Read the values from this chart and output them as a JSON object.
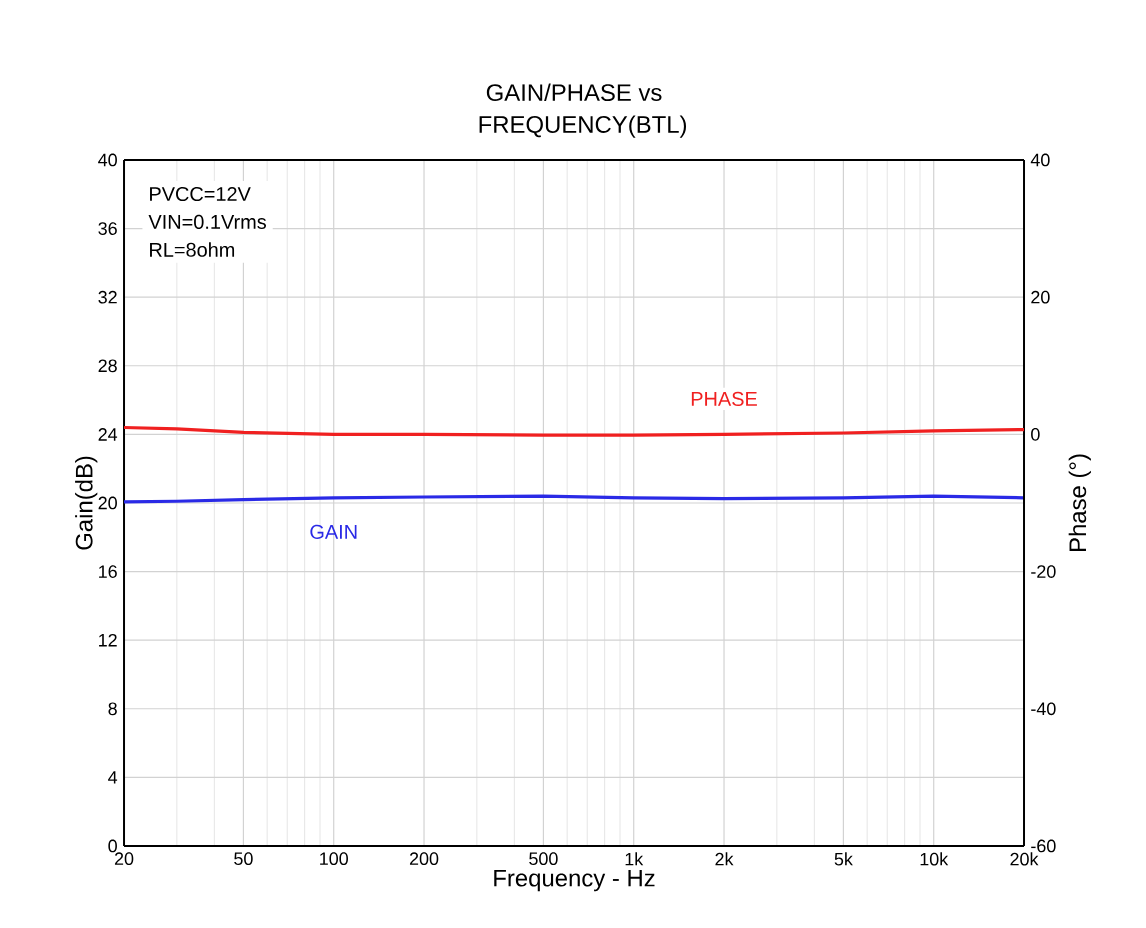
{
  "chart_data": {
    "type": "line",
    "title": "GAIN/PHASE vs FREQUENCY(BTL)",
    "xlabel": "Frequency - Hz",
    "ylabel": "Gain(dB)",
    "y2label": "Phase (°)",
    "log": "x",
    "grid": true,
    "legend": false,
    "marker": "none",
    "line_style": "solid",
    "xlim": [
      20,
      20000
    ],
    "xticks": [
      20,
      50,
      100,
      200,
      500,
      {
        "value": 1000,
        "label": "1k"
      },
      {
        "value": 2000,
        "label": "2k"
      },
      {
        "value": 5000,
        "label": "5k"
      },
      {
        "value": 10000,
        "label": "10k"
      },
      {
        "value": 20000,
        "label": "20k"
      }
    ],
    "ylim": [
      0,
      40
    ],
    "yticks": [
      0,
      4,
      8,
      12,
      16,
      20,
      24,
      28,
      32,
      36,
      40
    ],
    "y2lim": [
      -60,
      40
    ],
    "y2ticks": [
      -60,
      -40,
      -20,
      0,
      20,
      40
    ],
    "x": [
      20,
      30,
      50,
      100,
      200,
      500,
      1000,
      2000,
      5000,
      10000,
      20000
    ],
    "series": [
      {
        "name": "GAIN",
        "color": "#2a2ae6",
        "values": [
          20.06,
          20.1,
          20.2,
          20.3,
          20.35,
          20.4,
          20.3,
          20.25,
          20.3,
          20.4,
          20.3
        ]
      },
      {
        "name": "PHASE",
        "color": "#f02020",
        "axis": "y2",
        "values": [
          1,
          0.8,
          0.3,
          0,
          0,
          -0.1,
          -0.1,
          0,
          0.2,
          0.5,
          0.7
        ]
      }
    ],
    "annotations": [
      "PVCC=12V",
      "VIN=0.1Vrms",
      "RL=8ohm"
    ]
  }
}
